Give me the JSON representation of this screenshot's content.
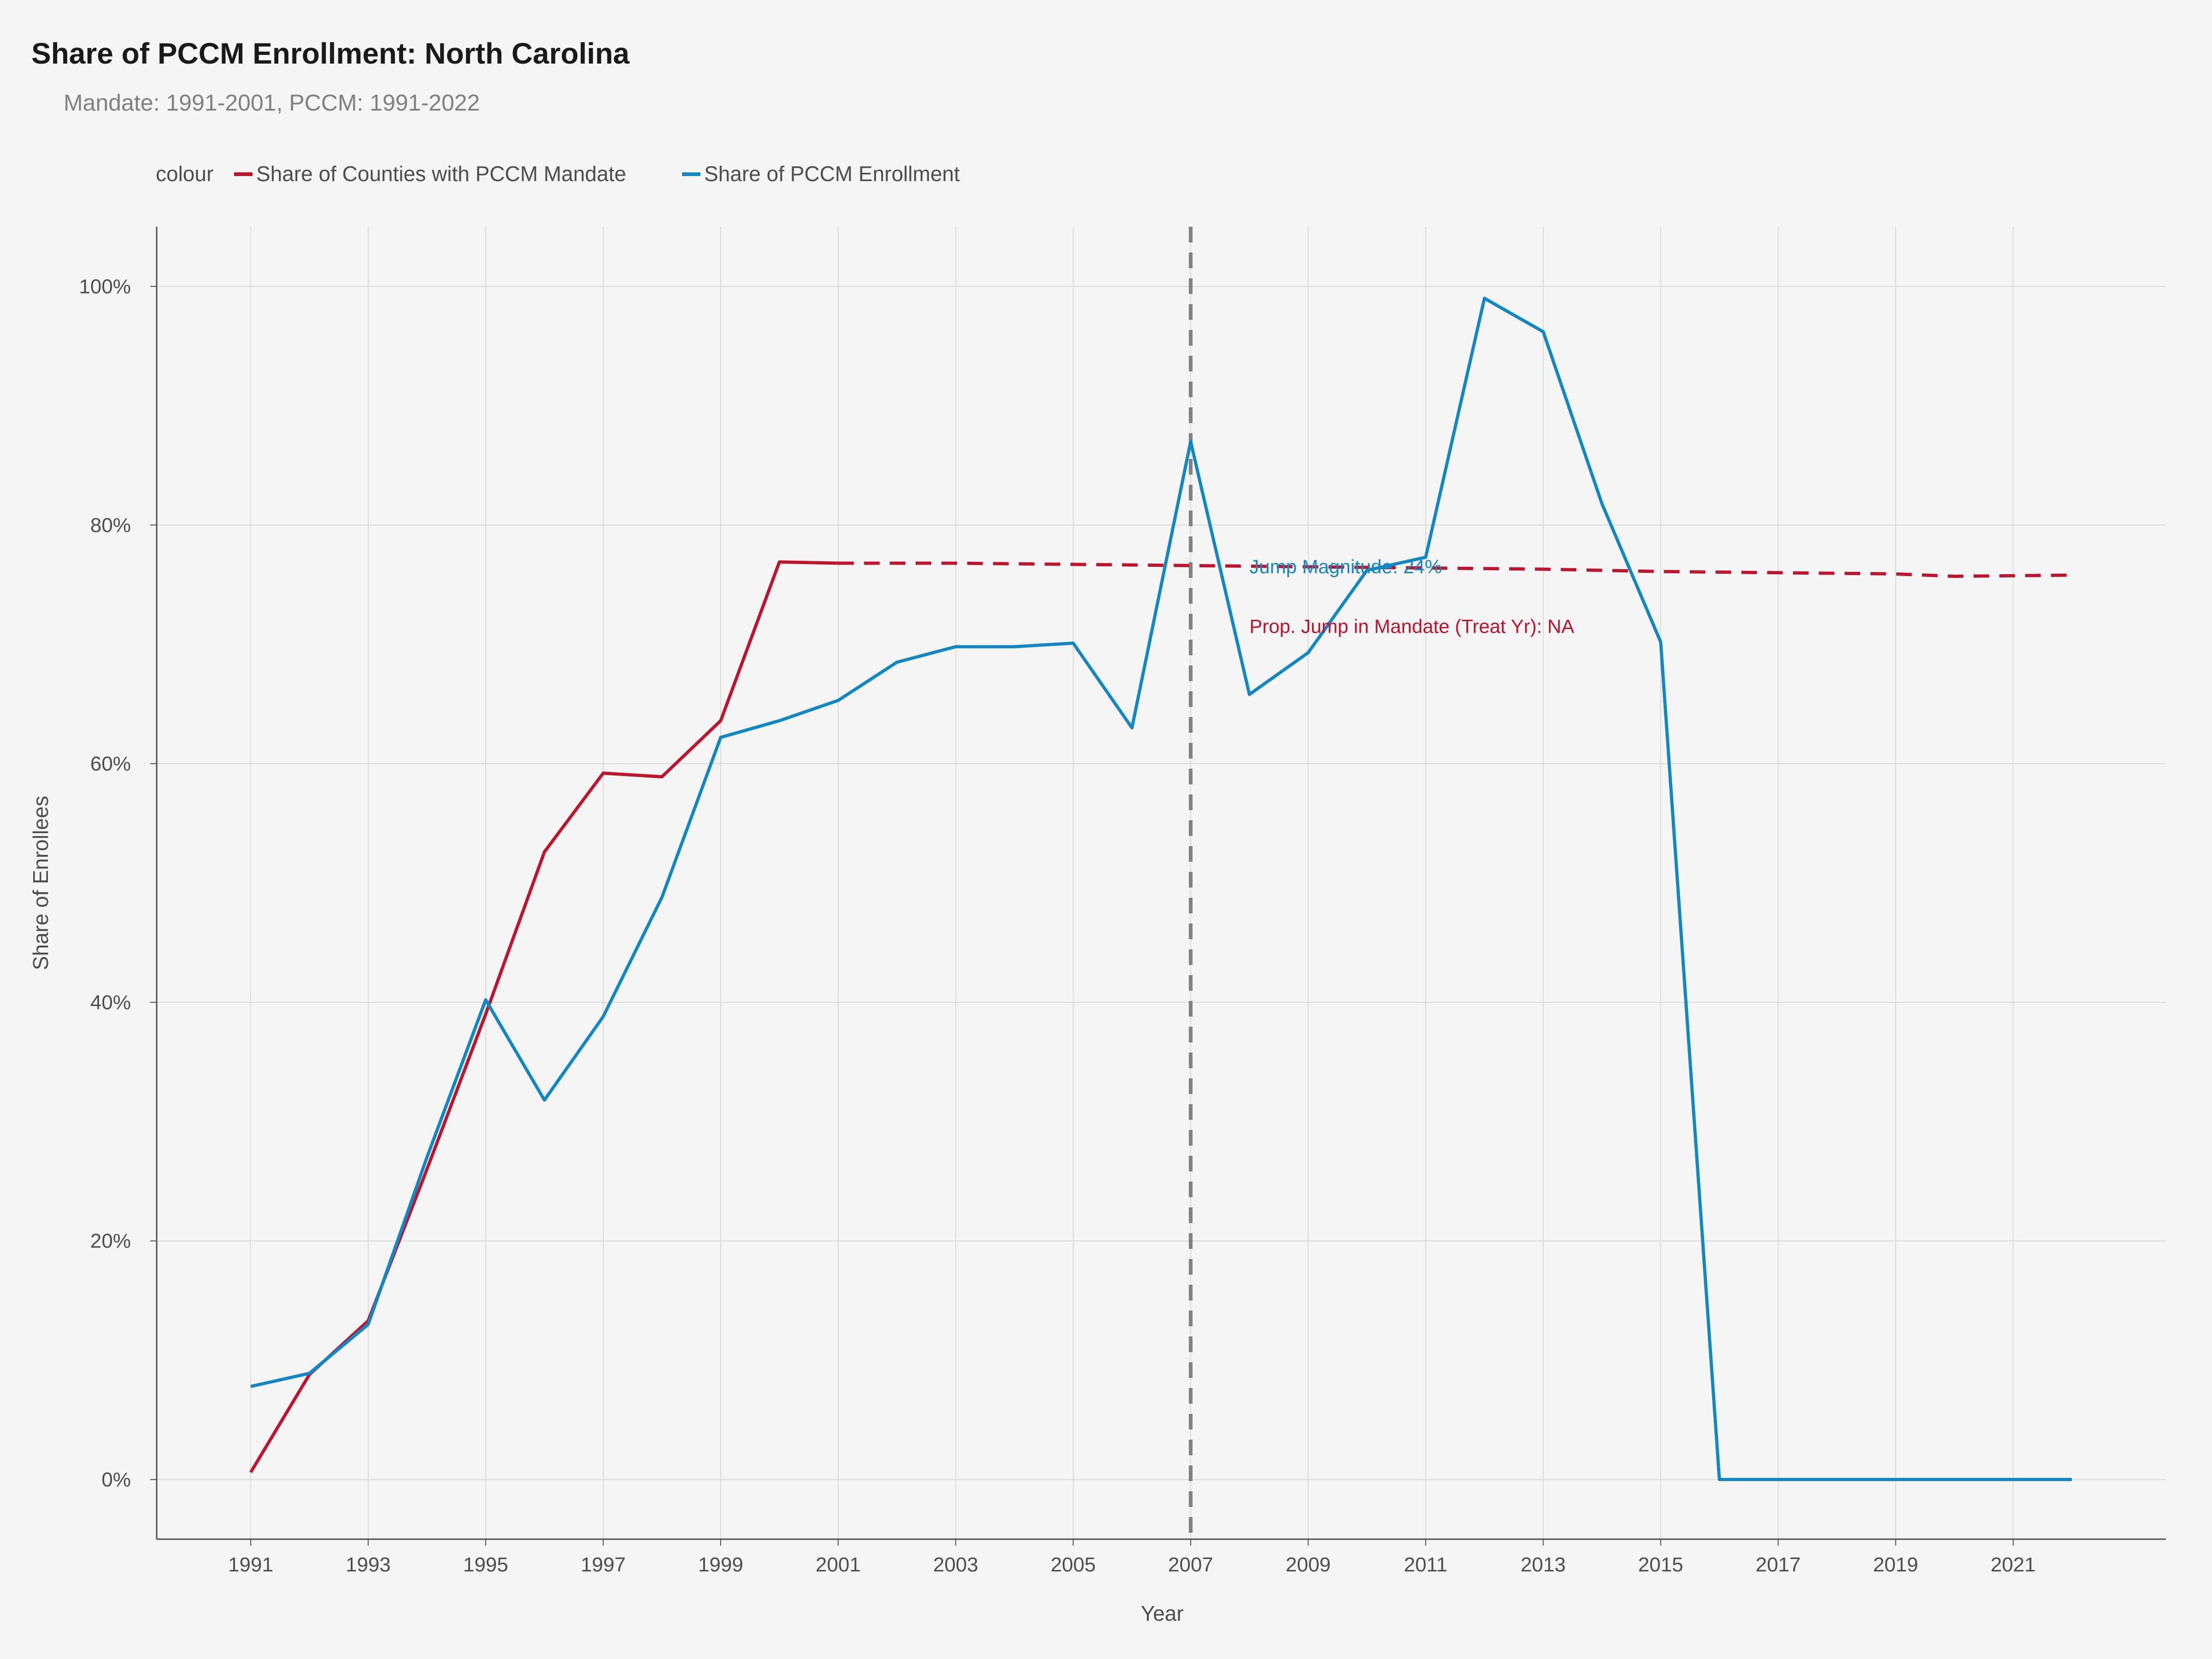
{
  "chart_data": {
    "type": "line",
    "title": "Share of PCCM Enrollment: North Carolina",
    "subtitle": "Mandate: 1991-2001, PCCM: 1991-2022",
    "xlabel": "Year",
    "ylabel": "Share of Enrollees",
    "xlim": [
      1989.4,
      2023.6
    ],
    "ylim": [
      -5,
      105
    ],
    "x_ticks": [
      1991,
      1993,
      1995,
      1997,
      1999,
      2001,
      2003,
      2005,
      2007,
      2009,
      2011,
      2013,
      2015,
      2017,
      2019,
      2021
    ],
    "y_ticks": [
      0,
      20,
      40,
      60,
      80,
      100
    ],
    "y_tick_labels": [
      "0%",
      "20%",
      "40%",
      "60%",
      "80%",
      "100%"
    ],
    "grid": true,
    "legend": {
      "title": "colour",
      "placement": "top-left"
    },
    "series": [
      {
        "name": "Share of Counties with PCCM Mandate",
        "color": "#c0142c",
        "style": "solid",
        "x": [
          1991,
          1992,
          1993,
          1994,
          1995,
          1996,
          1997,
          1998,
          1999,
          2000,
          2001
        ],
        "values": [
          0.6,
          8.8,
          13.3,
          26.0,
          39.0,
          52.6,
          59.2,
          58.9,
          63.6,
          76.9,
          76.8
        ]
      },
      {
        "name": "Share of Counties with PCCM Mandate",
        "color": "#c0142c",
        "style": "dashed",
        "x": [
          2001,
          2003,
          2005,
          2007,
          2009,
          2011,
          2013,
          2015,
          2017,
          2019,
          2020,
          2022
        ],
        "values": [
          76.8,
          76.8,
          76.7,
          76.6,
          76.5,
          76.4,
          76.3,
          76.1,
          76.0,
          75.9,
          75.7,
          75.8
        ]
      },
      {
        "name": "Share of PCCM Enrollment",
        "color": "#1188c4",
        "style": "solid",
        "x": [
          1991,
          1992,
          1993,
          1994,
          1995,
          1996,
          1997,
          1998,
          1999,
          2000,
          2001,
          2002,
          2003,
          2004,
          2005,
          2006,
          2007,
          2008,
          2009,
          2010,
          2011,
          2012,
          2013,
          2014,
          2015,
          2016,
          2017,
          2018,
          2019,
          2020,
          2021,
          2022
        ],
        "values": [
          7.8,
          8.9,
          13.0,
          27.0,
          40.2,
          31.8,
          38.8,
          48.8,
          62.2,
          63.6,
          65.3,
          68.5,
          69.8,
          69.8,
          70.1,
          63.0,
          87.0,
          65.8,
          69.3,
          76.2,
          77.3,
          99.0,
          96.2,
          81.8,
          70.2,
          0.0,
          0.0,
          0.0,
          0.0,
          0.0,
          0.0,
          0.0
        ]
      }
    ],
    "vline": {
      "x": 2007,
      "color": "#808080",
      "style": "dashed"
    },
    "annotations": [
      {
        "text": "Jump Magnitude: 24%",
        "x": 2008,
        "y": 76.5,
        "color": "#1188c4"
      },
      {
        "text": "Prop. Jump in Mandate (Treat Yr): NA",
        "x": 2008,
        "y": 71.5,
        "color": "#c0142c"
      }
    ]
  }
}
